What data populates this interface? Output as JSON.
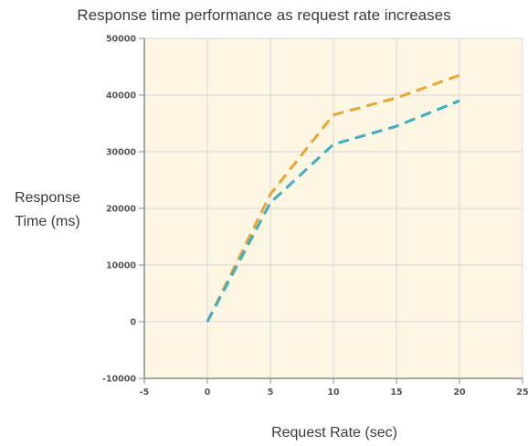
{
  "chart_data": {
    "type": "line",
    "title": "Response time performance as request rate increases",
    "xlabel": "Request Rate (sec)",
    "ylabel": [
      "Response",
      "Time (ms)"
    ],
    "xlim": [
      -5,
      25
    ],
    "ylim": [
      -10000,
      50000
    ],
    "x_ticks": [
      -5,
      0,
      5,
      10,
      15,
      20,
      25
    ],
    "y_ticks": [
      -10000,
      0,
      10000,
      20000,
      30000,
      40000,
      50000
    ],
    "grid": true,
    "legend": "none",
    "plot_background": "#fdf6e3",
    "series": [
      {
        "color": "#e8a532",
        "line_style": "dashed",
        "x": [
          0,
          5,
          10,
          15,
          20
        ],
        "y": [
          0,
          22500,
          36500,
          39500,
          43500
        ]
      },
      {
        "color": "#3ab0c0",
        "line_style": "dashed",
        "x": [
          0,
          5,
          10,
          15,
          20
        ],
        "y": [
          0,
          21000,
          31300,
          34500,
          39000
        ]
      }
    ]
  }
}
